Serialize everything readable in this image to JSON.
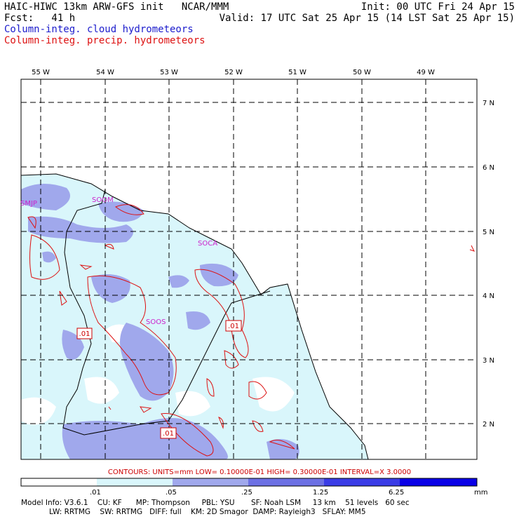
{
  "header": {
    "title_left": "HAIC-HIWC 13km ARW-GFS init   NCAR/MMM",
    "fcst": "Fcst:   41 h",
    "init": "Init: 00 UTC Fri 24 Apr 15",
    "valid": "Valid: 17 UTC Sat 25 Apr 15 (14 LST Sat 25 Apr 15)",
    "legend_cloud": "Column-integ. cloud hydrometeors",
    "legend_precip": "Column-integ. precip. hydrometeors"
  },
  "axes": {
    "longitudes": [
      "55 W",
      "54 W",
      "53 W",
      "52 W",
      "51 W",
      "50 W",
      "49 W"
    ],
    "latitudes": [
      "7 N",
      "6 N",
      "5 N",
      "4 N",
      "3 N",
      "2 N"
    ]
  },
  "stations": [
    "SMJP",
    "SOOM",
    "SOCA",
    "SOOS"
  ],
  "contour_labels": [
    ".01",
    ".01",
    ".01"
  ],
  "contours_info": "CONTOURS:  UNITS=mm  LOW= 0.10000E-01  HIGH= 0.30000E-01  INTERVAL=X  3.0000",
  "colorbar": {
    "labels": [
      ".01",
      ".05",
      ".25",
      "1.25",
      "6.25"
    ],
    "unit": "mm",
    "colors": [
      "#ffffff",
      "#d9f6fb",
      "#a0a8ec",
      "#6c70e4",
      "#3a3ce6",
      "#0a00e6"
    ]
  },
  "model_info": {
    "line1": "Model Info: V3.6.1    CU: KF      MP: Thompson     PBL: YSU       SF: Noah LSM     13 km    51 levels   60 sec",
    "line2": "            LW: RRTMG    SW: RRTMG   DIFF: full    KM: 2D Smagor  DAMP: Rayleigh3   SFLAY: MM5"
  }
}
